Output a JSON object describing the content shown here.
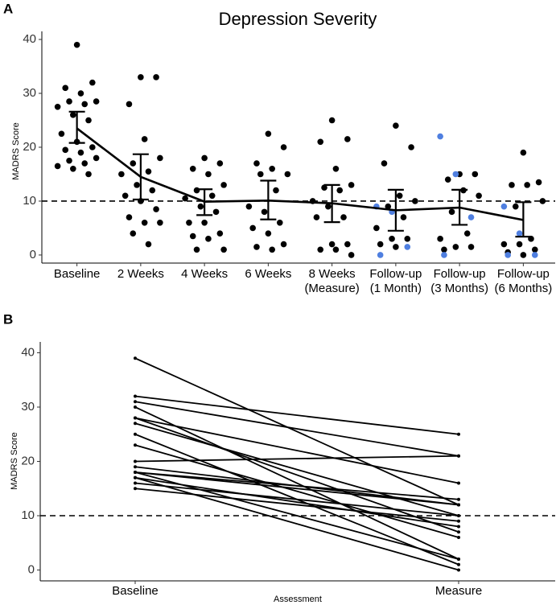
{
  "chart_data": [
    {
      "type": "jitter",
      "panel_label": "A",
      "title": "Depression Severity",
      "y_label": "MADRS Score",
      "categories": [
        [
          "Baseline"
        ],
        [
          "2 Weeks"
        ],
        [
          "4 Weeks"
        ],
        [
          "6 Weeks"
        ],
        [
          "8 Weeks",
          "(Measure)"
        ],
        [
          "Follow-up",
          "(1 Month)"
        ],
        [
          "Follow-up",
          "(3 Months)"
        ],
        [
          "Follow-up",
          "(6 Months)"
        ]
      ],
      "points": [
        [
          39,
          32,
          31,
          30,
          28.5,
          28.5,
          28,
          27.5,
          26,
          25,
          22.5,
          21,
          20,
          19.5,
          19,
          18,
          17.5,
          17,
          16.5,
          16,
          15
        ],
        [
          33,
          33,
          28,
          21.5,
          18,
          17,
          15.5,
          15,
          13,
          12,
          11,
          10,
          8.5,
          7,
          6,
          6,
          4,
          2
        ],
        [
          18,
          17,
          16,
          15,
          13,
          12,
          11,
          10.5,
          9,
          8,
          6,
          6,
          4,
          3.5,
          3,
          1,
          1
        ],
        [
          22.5,
          20,
          17,
          16,
          15,
          15,
          12,
          9,
          8,
          6,
          5,
          4,
          2,
          1.5,
          1
        ],
        [
          25,
          21.5,
          21,
          16,
          13,
          12.5,
          12,
          10,
          9,
          7,
          7,
          2,
          2,
          1,
          1,
          0
        ],
        [
          24,
          20,
          17,
          11,
          10,
          9,
          7,
          5,
          3,
          3,
          2,
          1.5
        ],
        [
          15,
          15,
          14,
          12,
          11,
          8,
          4,
          3,
          1.5,
          1.5,
          1
        ],
        [
          19,
          13.5,
          13,
          13,
          10,
          9,
          3,
          2,
          2,
          1,
          0.5,
          0
        ]
      ],
      "highlight_points": [
        [],
        [],
        [],
        [],
        [],
        [
          9,
          8,
          1.5,
          0
        ],
        [
          22,
          15,
          7,
          0
        ],
        [
          9,
          4,
          0,
          0
        ]
      ],
      "mean": [
        23.5,
        14.5,
        9.9,
        10.1,
        9.6,
        8.3,
        8.8,
        6.5
      ],
      "ci_lower": [
        20.8,
        10.3,
        7.4,
        6.6,
        6.1,
        4.5,
        5.6,
        3.4
      ],
      "ci_upper": [
        26.6,
        18.7,
        12.2,
        13.8,
        13.0,
        12.1,
        12.1,
        9.8
      ],
      "point_color": "#000000",
      "highlight_color": "#4f7fe0",
      "reference_line": 10,
      "ylim": [
        -1.5,
        41.5
      ],
      "yticks": [
        0,
        10,
        20,
        30,
        40
      ]
    },
    {
      "type": "paired",
      "panel_label": "B",
      "y_label": "MADRS Score",
      "x_label": "Assessment",
      "categories": [
        "Baseline",
        "Measure"
      ],
      "baseline": [
        39,
        32,
        31,
        30,
        28,
        28,
        27,
        25,
        23,
        20,
        19,
        18,
        18,
        17,
        17,
        16,
        15,
        18
      ],
      "measure": [
        12,
        25,
        21,
        2,
        16,
        7,
        10,
        1,
        6,
        21,
        12,
        12,
        2,
        8,
        0,
        10,
        9,
        13
      ],
      "color": "#000000",
      "reference_line": 10,
      "ylim": [
        -2,
        42
      ],
      "yticks": [
        0,
        10,
        20,
        30,
        40
      ]
    }
  ]
}
